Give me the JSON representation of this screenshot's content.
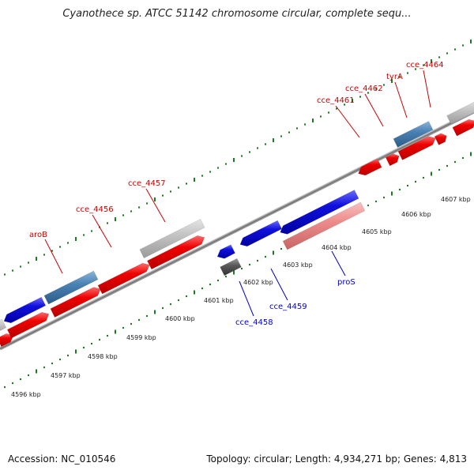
{
  "title": "Cyanothece sp. ATCC 51142 chromosome circular, complete sequ...",
  "footer": {
    "accession": "Accession: NC_010546",
    "summary": "Topology: circular; Length: 4,934,271 bp; Genes: 4,813"
  },
  "colors": {
    "forward_gene": "#ee0000",
    "reverse_gene": "#1010dd",
    "gray_gene": "#bdbdbd",
    "steel_gene": "#4a82b4",
    "pink_gene": "#ee8c8c",
    "dark_gene": "#5a5a5a",
    "forward_label": "#cc0000",
    "reverse_label": "#0000cc",
    "tick": "#1e7a1e",
    "backbone": "#888888"
  },
  "kbp_labels": [
    "4596 kbp",
    "4597 kbp",
    "4598 kbp",
    "4599 kbp",
    "4600 kbp",
    "4601 kbp",
    "4602 kbp",
    "4603 kbp",
    "4604 kbp",
    "4605 kbp",
    "4606 kbp",
    "4607 kbp"
  ],
  "gene_labels_top": [
    "aroB",
    "cce_4456",
    "cce_4457",
    "cce_4461",
    "cce_4462",
    "tyrA",
    "cce_4464"
  ],
  "gene_labels_bottom": [
    "cce_4458",
    "cce_4459",
    "proS"
  ]
}
